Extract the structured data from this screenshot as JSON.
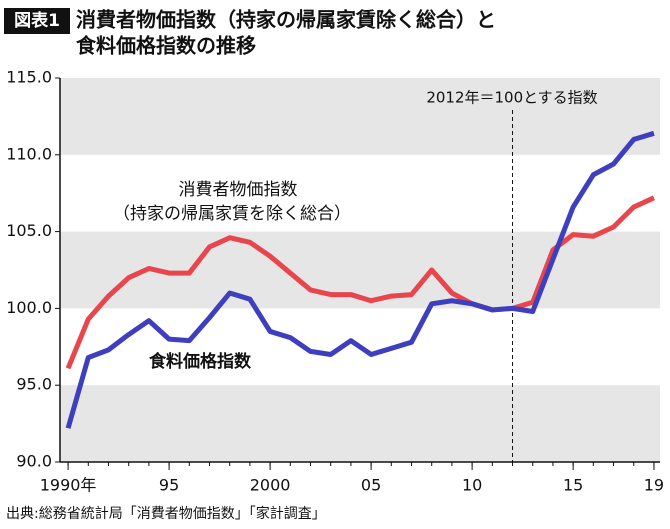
{
  "chart_data": {
    "type": "line",
    "badge": "図表1",
    "title": [
      "消費者物価指数（持家の帰属家賃除く総合）と",
      "食料価格指数の推移"
    ],
    "x": [
      1990,
      1991,
      1992,
      1993,
      1994,
      1995,
      1996,
      1997,
      1998,
      1999,
      2000,
      2001,
      2002,
      2003,
      2004,
      2005,
      2006,
      2007,
      2008,
      2009,
      2010,
      2011,
      2012,
      2013,
      2014,
      2015,
      2016,
      2017,
      2018,
      2019
    ],
    "series": [
      {
        "name": "消費者物価指数",
        "subname": "（持家の帰属家賃を除く総合）",
        "color": "#e8464c",
        "values": [
          96.1,
          99.3,
          100.8,
          102.0,
          102.6,
          102.3,
          102.3,
          104.0,
          104.6,
          104.3,
          103.4,
          102.3,
          101.2,
          100.9,
          100.9,
          100.5,
          100.8,
          100.9,
          102.5,
          101.0,
          100.3,
          99.9,
          100.0,
          100.4,
          103.8,
          104.8,
          104.7,
          105.3,
          106.6,
          107.2
        ]
      },
      {
        "name": "食料価格指数",
        "color": "#3d3fbf",
        "values": [
          92.2,
          96.8,
          97.3,
          98.3,
          99.2,
          98.0,
          97.9,
          99.4,
          101.0,
          100.6,
          98.5,
          98.1,
          97.2,
          97.0,
          97.9,
          97.0,
          97.4,
          97.8,
          100.3,
          100.5,
          100.3,
          99.9,
          100.0,
          99.8,
          103.2,
          106.6,
          108.7,
          109.4,
          111.0,
          111.4
        ]
      }
    ],
    "xlim": [
      1989.6,
      2019.3
    ],
    "xticks": [
      {
        "value": 1990,
        "label": "1990年"
      },
      {
        "value": 1995,
        "label": "95"
      },
      {
        "value": 2000,
        "label": "2000"
      },
      {
        "value": 2005,
        "label": "05"
      },
      {
        "value": 2010,
        "label": "10"
      },
      {
        "value": 2015,
        "label": "15"
      },
      {
        "value": 2019,
        "label": "19"
      }
    ],
    "ylim": [
      90,
      115
    ],
    "yticks": [
      {
        "value": 90,
        "label": "90.0"
      },
      {
        "value": 95,
        "label": "95.0"
      },
      {
        "value": 100,
        "label": "100.0"
      },
      {
        "value": 105,
        "label": "105.0"
      },
      {
        "value": 110,
        "label": "110.0"
      },
      {
        "value": 115,
        "label": "115.0"
      }
    ],
    "annotation": {
      "text": "2012年＝100とする指数",
      "x": 2012
    },
    "source": "出典:総務省統計局「消費者物価指数」「家計調査」"
  }
}
